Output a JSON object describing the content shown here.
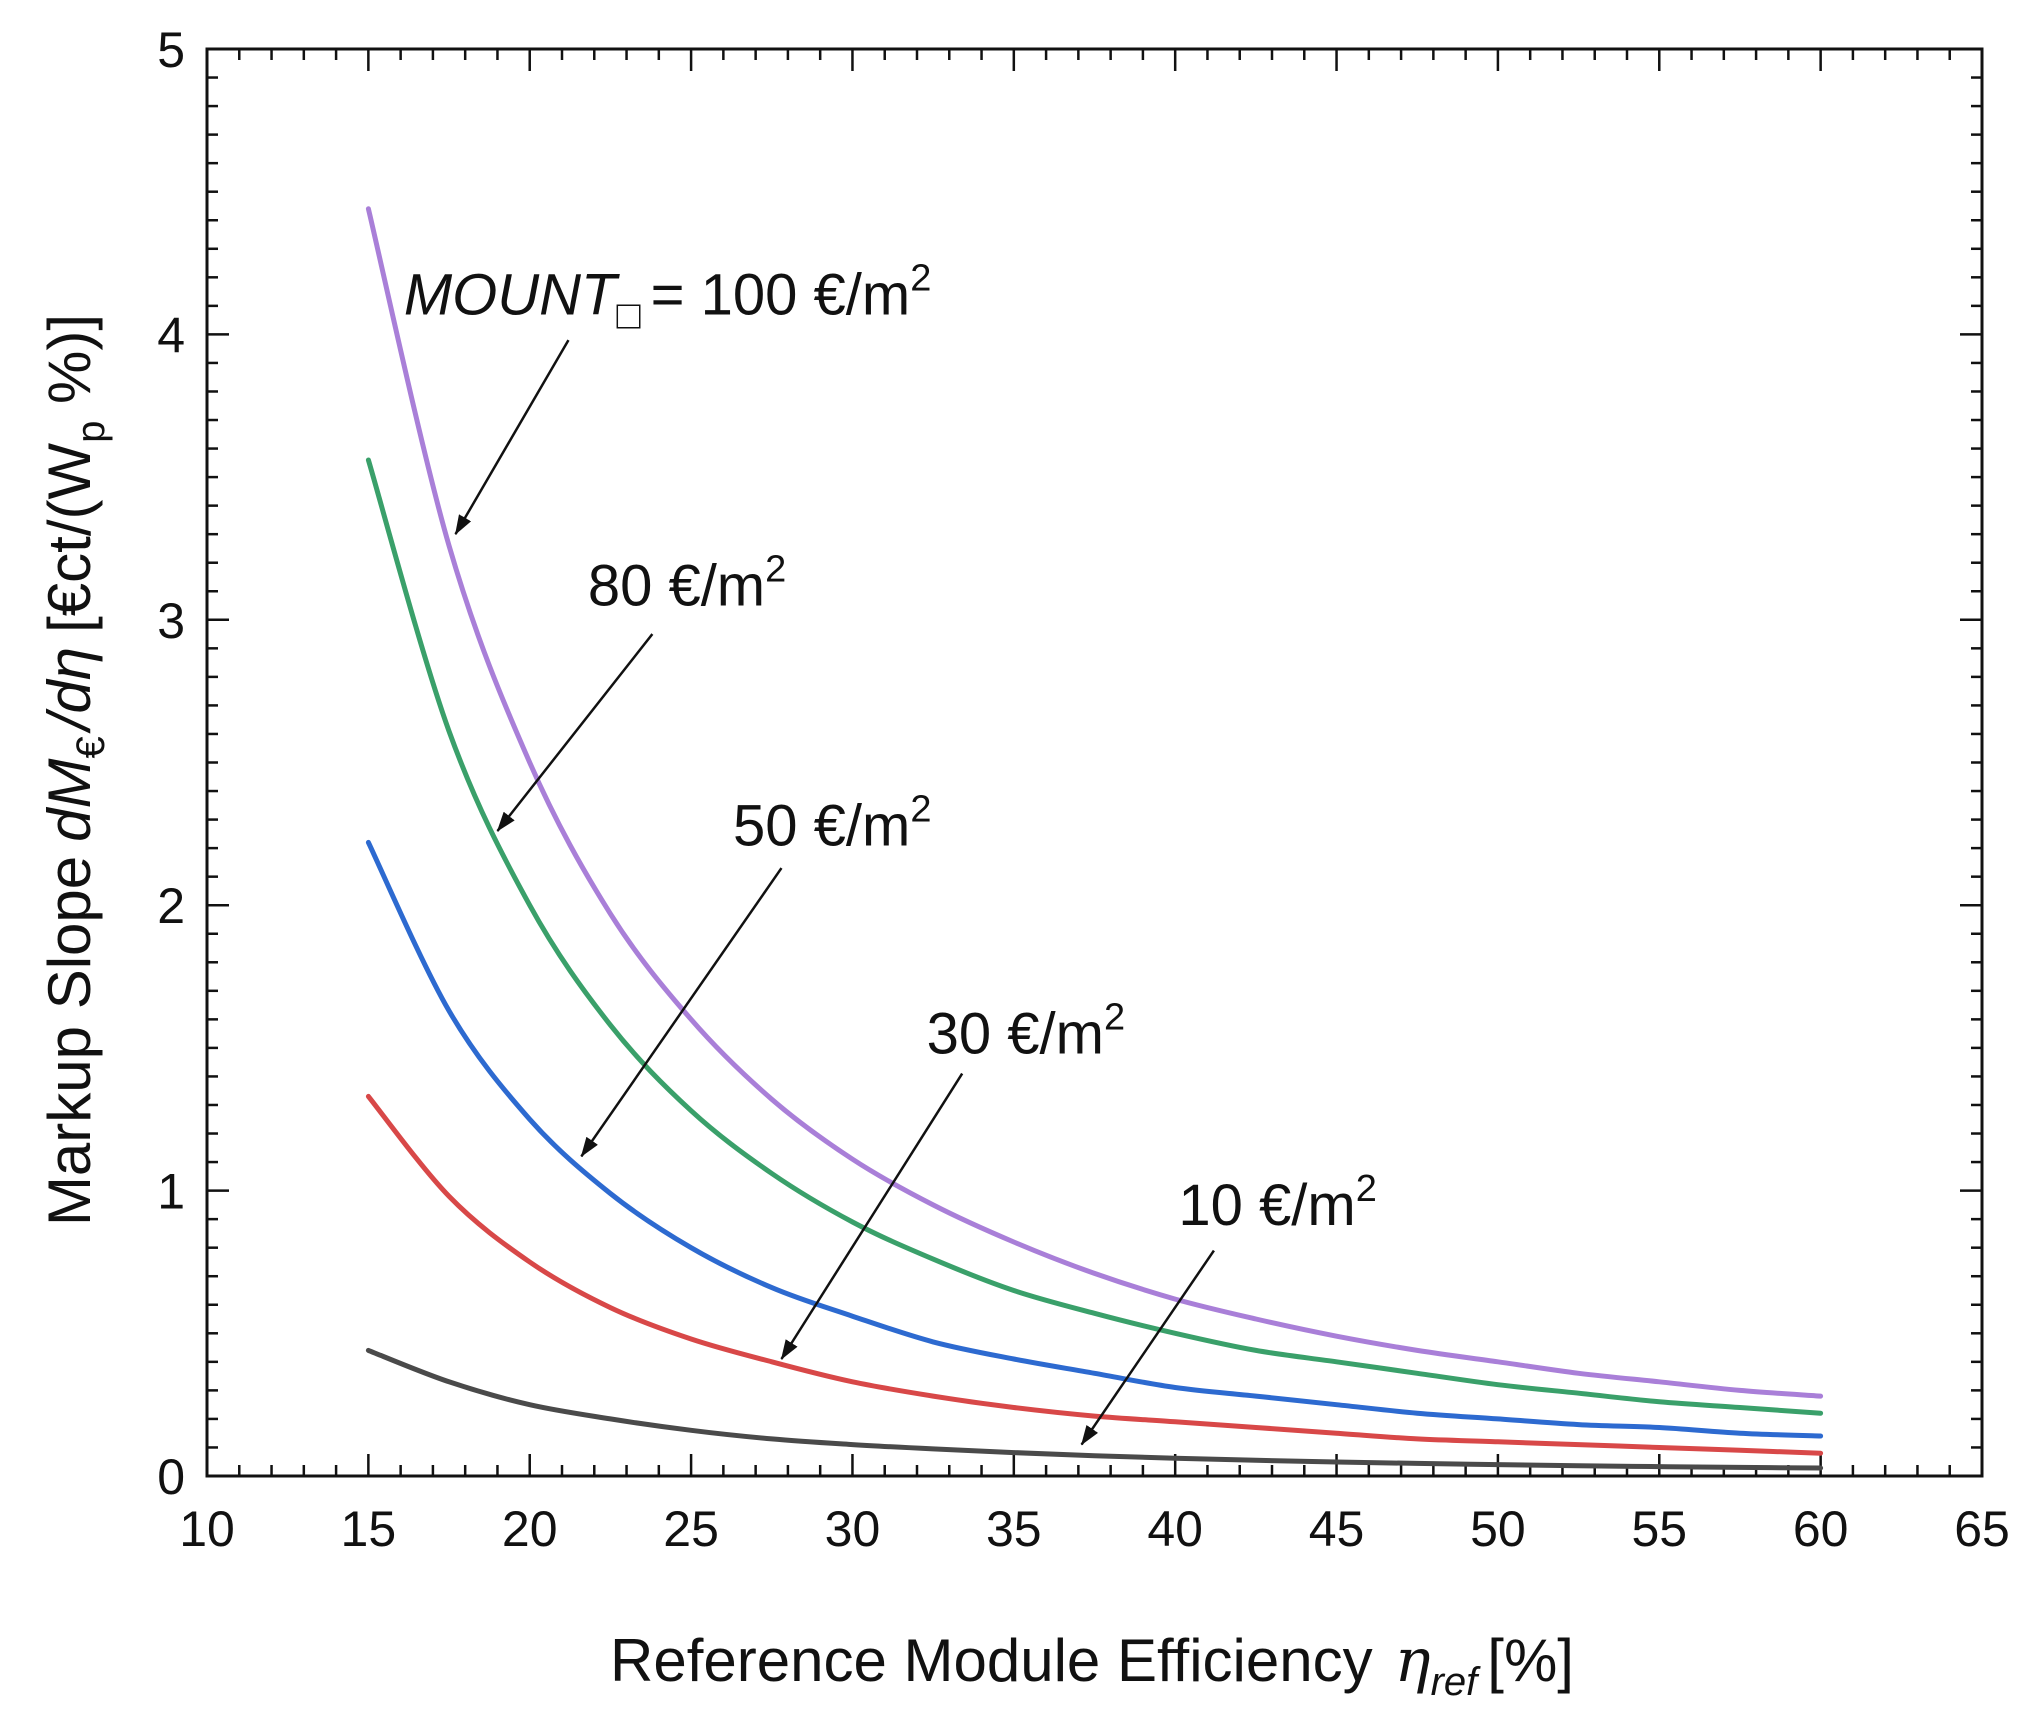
{
  "chart_data": {
    "type": "line",
    "title": "",
    "xlabel": "Reference Module Efficiency",
    "xlabel_symbol": "η",
    "xlabel_subscript": "ref",
    "xlabel_unit": "[%]",
    "ylabel_prefix": "Markup Slope",
    "ylabel_symbol": "dM",
    "ylabel_subscript": "€",
    "ylabel_mid": "/dη",
    "ylabel_unit_open": "[€ct/(W",
    "ylabel_unit_sub": "p",
    "ylabel_unit_close": " %)]",
    "xlim": [
      10,
      65
    ],
    "ylim": [
      0,
      5
    ],
    "xticks": [
      10,
      15,
      20,
      25,
      30,
      35,
      40,
      45,
      50,
      55,
      60,
      65
    ],
    "yticks": [
      0,
      1,
      2,
      3,
      4,
      5
    ],
    "grid": false,
    "x": [
      15,
      17.5,
      20,
      22.5,
      25,
      27.5,
      30,
      32.5,
      35,
      37.5,
      40,
      42.5,
      45,
      47.5,
      50,
      52.5,
      55,
      57.5,
      60
    ],
    "series": [
      {
        "name": "100 €/m²",
        "color": "#a97fd8",
        "values": [
          4.44,
          3.26,
          2.5,
          1.97,
          1.6,
          1.32,
          1.11,
          0.95,
          0.82,
          0.71,
          0.62,
          0.55,
          0.49,
          0.44,
          0.4,
          0.36,
          0.33,
          0.3,
          0.28
        ]
      },
      {
        "name": "80 €/m²",
        "color": "#3aa06a",
        "values": [
          3.56,
          2.61,
          2.0,
          1.58,
          1.28,
          1.06,
          0.89,
          0.76,
          0.65,
          0.57,
          0.5,
          0.44,
          0.4,
          0.36,
          0.32,
          0.29,
          0.26,
          0.24,
          0.22
        ]
      },
      {
        "name": "50 €/m²",
        "color": "#2d6ad0",
        "values": [
          2.22,
          1.63,
          1.25,
          0.99,
          0.8,
          0.66,
          0.56,
          0.47,
          0.41,
          0.36,
          0.31,
          0.28,
          0.25,
          0.22,
          0.2,
          0.18,
          0.17,
          0.15,
          0.14
        ]
      },
      {
        "name": "30 €/m²",
        "color": "#d84848",
        "values": [
          1.33,
          0.98,
          0.75,
          0.59,
          0.48,
          0.4,
          0.33,
          0.28,
          0.24,
          0.21,
          0.19,
          0.17,
          0.15,
          0.13,
          0.12,
          0.11,
          0.1,
          0.09,
          0.08
        ]
      },
      {
        "name": "10 €/m²",
        "color": "#4a4a4a",
        "values": [
          0.44,
          0.33,
          0.25,
          0.2,
          0.16,
          0.13,
          0.11,
          0.095,
          0.082,
          0.071,
          0.062,
          0.055,
          0.049,
          0.044,
          0.04,
          0.036,
          0.033,
          0.03,
          0.028
        ]
      }
    ],
    "annotations": [
      {
        "id": "mount100",
        "label": "= 100 €/m",
        "sup": "2",
        "prefix": "MOUNT",
        "prefix_sub": "□",
        "tx": 16.1,
        "ty": 4.07,
        "ax0": 21.2,
        "ay0": 3.98,
        "ax1": 17.7,
        "ay1": 3.3
      },
      {
        "id": "mount80",
        "label": "80 €/m",
        "sup": "2",
        "tx": 21.8,
        "ty": 3.05,
        "ax0": 23.8,
        "ay0": 2.95,
        "ax1": 19.0,
        "ay1": 2.26
      },
      {
        "id": "mount50",
        "label": "50 €/m",
        "sup": "2",
        "tx": 26.3,
        "ty": 2.21,
        "ax0": 27.8,
        "ay0": 2.13,
        "ax1": 21.6,
        "ay1": 1.12
      },
      {
        "id": "mount30",
        "label": "30 €/m",
        "sup": "2",
        "tx": 32.3,
        "ty": 1.48,
        "ax0": 33.4,
        "ay0": 1.41,
        "ax1": 27.8,
        "ay1": 0.41
      },
      {
        "id": "mount10",
        "label": "10 €/m",
        "sup": "2",
        "tx": 40.1,
        "ty": 0.88,
        "ax0": 41.2,
        "ay0": 0.79,
        "ax1": 37.1,
        "ay1": 0.11
      }
    ]
  }
}
